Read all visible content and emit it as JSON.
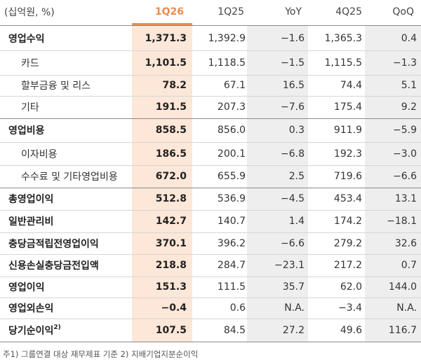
{
  "header": {
    "unit": "(십억원, %)",
    "col1": "1Q26",
    "col2": "1Q25",
    "col3": "YoY",
    "col4": "4Q25",
    "col5": "QoQ"
  },
  "rows": [
    {
      "label": "영업수익",
      "v1": "1,371.3",
      "v2": "1,392.9",
      "v3": "−1.6",
      "v4": "1,365.3",
      "v5": "0.4"
    },
    {
      "label": "카드",
      "v1": "1,101.5",
      "v2": "1,118.5",
      "v3": "−1.5",
      "v4": "1,115.5",
      "v5": "−1.3"
    },
    {
      "label": "할부금융 및 리스",
      "v1": "78.2",
      "v2": "67.1",
      "v3": "16.5",
      "v4": "74.4",
      "v5": "5.1"
    },
    {
      "label": "기타",
      "v1": "191.5",
      "v2": "207.3",
      "v3": "−7.6",
      "v4": "175.4",
      "v5": "9.2"
    },
    {
      "label": "영업비용",
      "v1": "858.5",
      "v2": "856.0",
      "v3": "0.3",
      "v4": "911.9",
      "v5": "−5.9"
    },
    {
      "label": "이자비용",
      "v1": "186.5",
      "v2": "200.1",
      "v3": "−6.8",
      "v4": "192.3",
      "v5": "−3.0"
    },
    {
      "label": "수수료 및 기타영업비용",
      "v1": "672.0",
      "v2": "655.9",
      "v3": "2.5",
      "v4": "719.6",
      "v5": "−6.6"
    },
    {
      "label": "총영업이익",
      "v1": "512.8",
      "v2": "536.9",
      "v3": "−4.5",
      "v4": "453.4",
      "v5": "13.1"
    },
    {
      "label": "일반관리비",
      "v1": "142.7",
      "v2": "140.7",
      "v3": "1.4",
      "v4": "174.2",
      "v5": "−18.1"
    },
    {
      "label": "충당금적립전영업이익",
      "v1": "370.1",
      "v2": "396.2",
      "v3": "−6.6",
      "v4": "279.2",
      "v5": "32.6"
    },
    {
      "label": "신용손실충당금전입액",
      "v1": "218.8",
      "v2": "284.7",
      "v3": "−23.1",
      "v4": "217.2",
      "v5": "0.7"
    },
    {
      "label": "영업이익",
      "v1": "151.3",
      "v2": "111.5",
      "v3": "35.7",
      "v4": "62.0",
      "v5": "144.0"
    },
    {
      "label": "영업외손익",
      "v1": "−0.4",
      "v2": "0.6",
      "v3": "N.A.",
      "v4": "−3.4",
      "v5": "N.A."
    },
    {
      "label": "당기순이익",
      "label_sup": "2)",
      "v1": "107.5",
      "v2": "84.5",
      "v3": "27.2",
      "v4": "49.6",
      "v5": "116.7"
    }
  ],
  "footnote": "주1) 그룹연결 대상 재무제표 기준   2) 지배기업지분순이익"
}
